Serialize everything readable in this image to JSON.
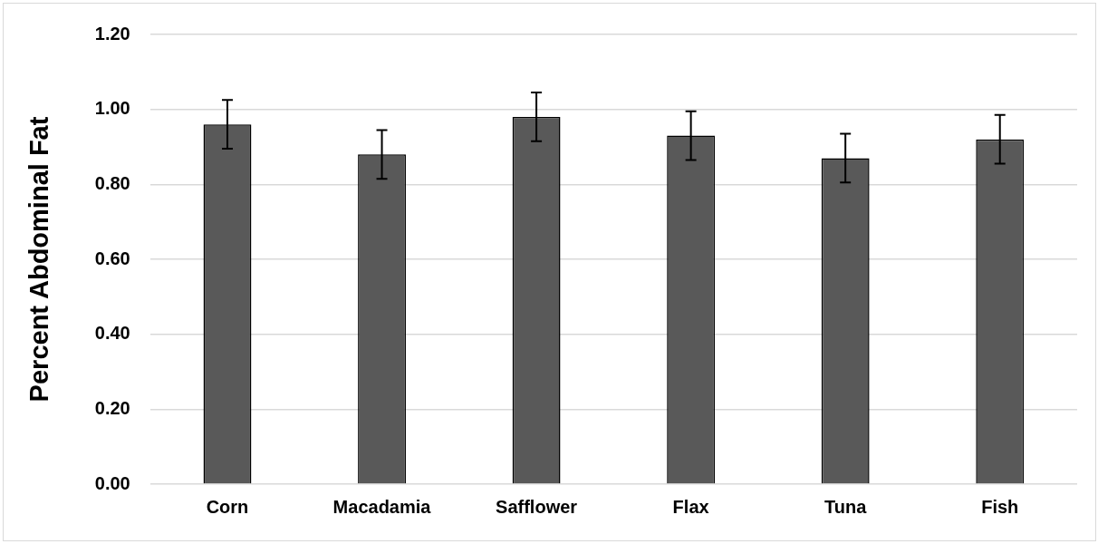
{
  "chart_data": {
    "type": "bar",
    "ylabel": "Percent Abdominal Fat",
    "categories": [
      "Corn",
      "Macadamia",
      "Safflower",
      "Flax",
      "Tuna",
      "Fish"
    ],
    "values": [
      0.96,
      0.88,
      0.98,
      0.93,
      0.87,
      0.92
    ],
    "errors": [
      0.065,
      0.065,
      0.065,
      0.065,
      0.065,
      0.065
    ],
    "color": "#595959",
    "ylim": [
      0,
      1.2
    ],
    "yticks": [
      {
        "value": 0,
        "label": "0.00"
      },
      {
        "value": 0.2,
        "label": "0.20"
      },
      {
        "value": 0.4,
        "label": "0.40"
      },
      {
        "value": 0.6,
        "label": "0.60"
      },
      {
        "value": 0.8,
        "label": "0.80"
      },
      {
        "value": 1,
        "label": "1.00"
      },
      {
        "value": 1.2,
        "label": "1.20"
      }
    ],
    "grid": "y",
    "legend": false
  }
}
